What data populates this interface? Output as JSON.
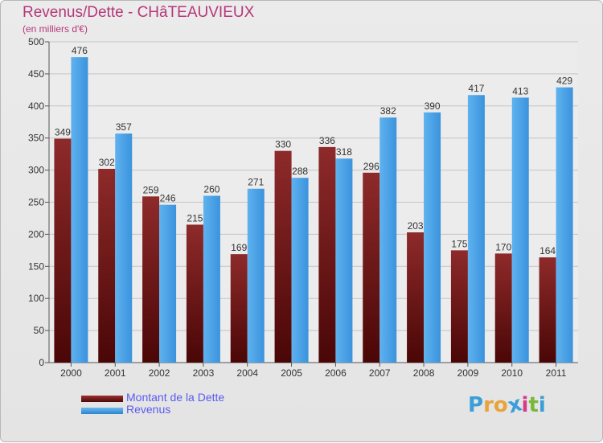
{
  "title": "Revenus/Dette - CHâTEAUVIEUX",
  "subtitle": "(en milliers d'€)",
  "chart_data": {
    "type": "bar",
    "categories": [
      "2000",
      "2001",
      "2002",
      "2003",
      "2004",
      "2005",
      "2006",
      "2007",
      "2008",
      "2009",
      "2010",
      "2011"
    ],
    "series": [
      {
        "name": "Montant de la Dette",
        "color": "#7a1f1f",
        "values": [
          349,
          302,
          259,
          215,
          169,
          330,
          336,
          296,
          203,
          175,
          170,
          164
        ]
      },
      {
        "name": "Revenus",
        "color": "#3d9be6",
        "values": [
          476,
          357,
          246,
          260,
          271,
          288,
          318,
          382,
          390,
          417,
          413,
          429
        ]
      }
    ],
    "y_ticks": [
      0,
      50,
      100,
      150,
      200,
      250,
      300,
      350,
      400,
      450,
      500
    ],
    "ylim": [
      0,
      500
    ],
    "grid": true,
    "legend_position": "bottom-left"
  },
  "legend": {
    "debt_label": "Montant de la Dette",
    "revenue_label": "Revenus"
  },
  "logo": {
    "letters": [
      "P",
      "r",
      "o",
      "x",
      "i",
      "t",
      "i"
    ],
    "colors": [
      "#3a9fd8",
      "#e8a33a",
      "#e8a33a",
      "#3a9fd8",
      "#d83a8a",
      "#7ab83a",
      "#3a9fd8"
    ]
  }
}
